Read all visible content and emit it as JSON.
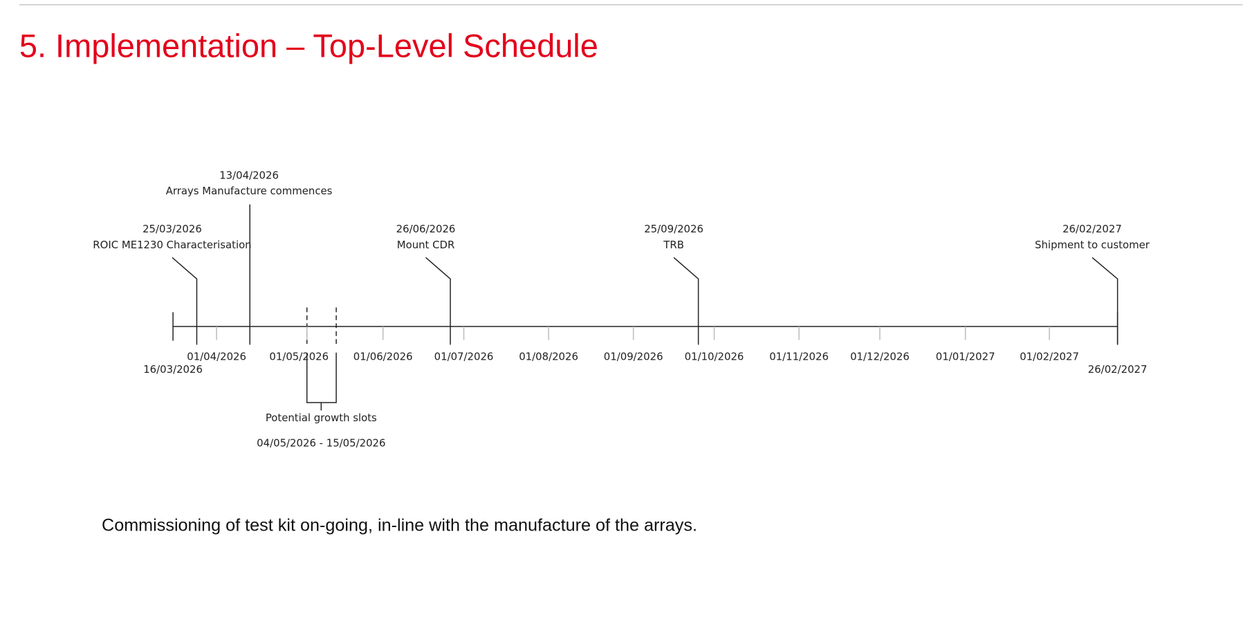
{
  "title": "5. Implementation – Top-Level Schedule",
  "timeline": {
    "start": "16/03/2026",
    "end": "26/02/2027",
    "ticks": [
      "01/04/2026",
      "01/05/2026",
      "01/06/2026",
      "01/07/2026",
      "01/08/2026",
      "01/09/2026",
      "01/10/2026",
      "01/11/2026",
      "01/12/2026",
      "01/01/2027",
      "01/02/2027"
    ],
    "milestones": [
      {
        "date": "25/03/2026",
        "label": "ROIC ME1230 Characterisation"
      },
      {
        "date": "13/04/2026",
        "label": "Arrays Manufacture commences"
      },
      {
        "date": "26/06/2026",
        "label": "Mount CDR"
      },
      {
        "date": "25/09/2026",
        "label": "TRB"
      },
      {
        "date": "26/02/2027",
        "label": "Shipment to customer"
      }
    ],
    "growth_slots": {
      "label": "Potential growth slots",
      "range": "04/05/2026 - 15/05/2026"
    }
  },
  "footer": "Commissioning of test kit on-going, in-line with the manufacture of the arrays."
}
